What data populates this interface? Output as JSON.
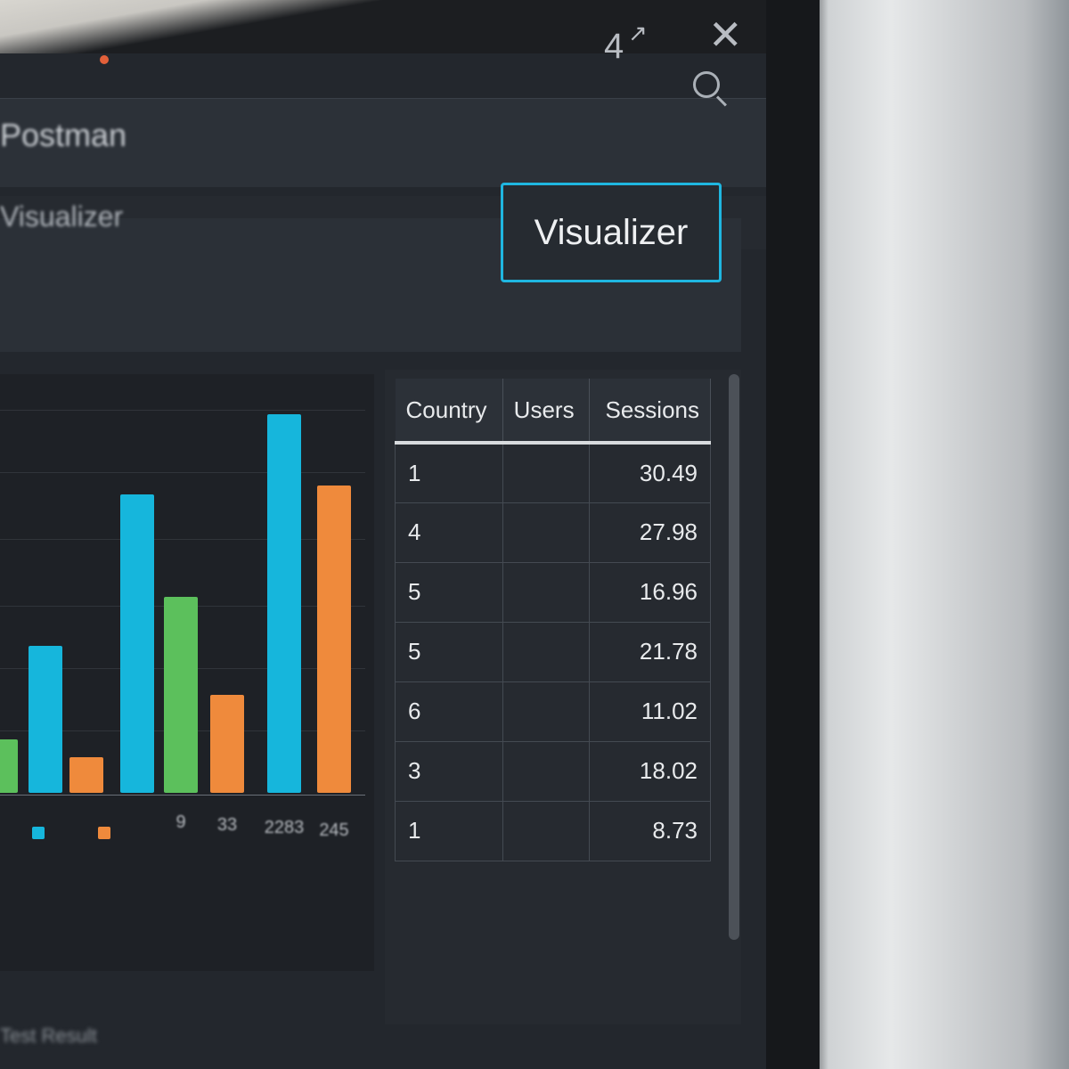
{
  "app": {
    "name": "Postman",
    "section": "Visualizer",
    "footer": "Test Result"
  },
  "topbar": {
    "badge": "4",
    "icons": [
      "open-in-new-icon",
      "close-icon"
    ]
  },
  "header": {
    "search_icon": "search-icon"
  },
  "toolbar": {
    "visualizer_button": "Visualizer",
    "accent": "#1fb6e0"
  },
  "table": {
    "columns": [
      "Country",
      "Users",
      "Sessions"
    ],
    "rows": [
      [
        "1",
        "",
        "30.49"
      ],
      [
        "4",
        "",
        "27.98"
      ],
      [
        "5",
        "",
        "16.96"
      ],
      [
        "5",
        "",
        "21.78"
      ],
      [
        "6",
        "",
        "11.02"
      ],
      [
        "3",
        "",
        "18.02"
      ],
      [
        "1",
        "",
        "8.73"
      ]
    ]
  },
  "chart_data": {
    "type": "bar",
    "title": "",
    "xlabel": "",
    "ylabel": "",
    "categories": [
      "",
      "",
      "",
      "",
      "9",
      "33",
      "2283",
      "245"
    ],
    "values": [
      60,
      165,
      40,
      335,
      220,
      110,
      425,
      345
    ],
    "colors": [
      "#5cc05c",
      "#16b6dc",
      "#ef8a3c",
      "#16b6dc",
      "#5cc05c",
      "#ef8a3c",
      "#16b6dc",
      "#ef8a3c"
    ],
    "legend": {
      "placement": "bottom",
      "swatches": [
        "#16b6dc",
        "#ef8a3c"
      ]
    },
    "grid": true
  }
}
